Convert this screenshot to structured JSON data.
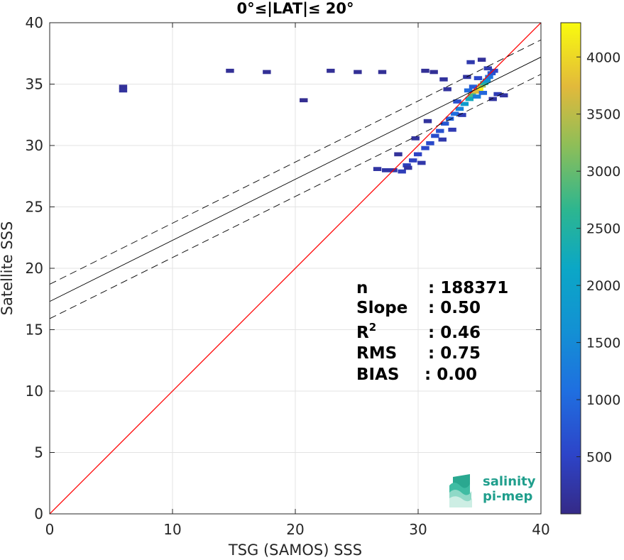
{
  "chart_data": {
    "type": "heatmap",
    "title": "0°≤|LAT|≤ 20°",
    "xlabel": "TSG (SAMOS) SSS",
    "ylabel": "Satellite SSS",
    "xlim": [
      0,
      40
    ],
    "ylim": [
      0,
      40
    ],
    "xticks": [
      0,
      10,
      20,
      30,
      40
    ],
    "yticks": [
      0,
      5,
      10,
      15,
      20,
      25,
      30,
      35,
      40
    ],
    "grid": true,
    "colorbar": {
      "colormap": "parula",
      "range": [
        0,
        4300
      ],
      "ticks": [
        500,
        1000,
        1500,
        2000,
        2500,
        3000,
        3500,
        4000
      ]
    },
    "lines": [
      {
        "name": "one-to-one",
        "style": "solid",
        "color": "#ff0000",
        "x": [
          0,
          40
        ],
        "y": [
          0,
          40
        ]
      },
      {
        "name": "regression",
        "style": "solid",
        "color": "#000000",
        "x": [
          0,
          40
        ],
        "y": [
          17.3,
          37.2
        ]
      },
      {
        "name": "regression-upper",
        "style": "dashed",
        "color": "#000000",
        "x": [
          0,
          40
        ],
        "y": [
          18.7,
          38.6
        ]
      },
      {
        "name": "regression-lower",
        "style": "dashed",
        "color": "#000000",
        "x": [
          0,
          40
        ],
        "y": [
          15.9,
          35.8
        ]
      }
    ],
    "density_cells": [
      [
        34.8,
        34.6,
        4200
      ],
      [
        34.5,
        34.4,
        3600
      ],
      [
        35.0,
        34.9,
        3100
      ],
      [
        34.2,
        34.1,
        2600
      ],
      [
        35.2,
        35.1,
        2200
      ],
      [
        34.0,
        33.8,
        1900
      ],
      [
        33.6,
        33.4,
        1500
      ],
      [
        35.4,
        35.3,
        1300
      ],
      [
        33.2,
        33.0,
        1000
      ],
      [
        34.6,
        34.0,
        900
      ],
      [
        35.6,
        35.6,
        800
      ],
      [
        32.8,
        32.6,
        700
      ],
      [
        33.9,
        34.5,
        650
      ],
      [
        35.1,
        34.3,
        600
      ],
      [
        32.4,
        32.2,
        550
      ],
      [
        34.3,
        34.8,
        500
      ],
      [
        32.0,
        31.8,
        450
      ],
      [
        35.8,
        35.9,
        400
      ],
      [
        31.6,
        31.2,
        380
      ],
      [
        33.0,
        33.6,
        350
      ],
      [
        31.2,
        30.8,
        320
      ],
      [
        30.8,
        30.2,
        300
      ],
      [
        30.4,
        29.8,
        280
      ],
      [
        34.7,
        35.5,
        260
      ],
      [
        36.0,
        36.1,
        240
      ],
      [
        29.8,
        29.3,
        220
      ],
      [
        29.4,
        28.8,
        200
      ],
      [
        28.9,
        28.4,
        180
      ],
      [
        28.5,
        27.9,
        160
      ],
      [
        36.3,
        34.2,
        150
      ],
      [
        33.4,
        32.5,
        140
      ],
      [
        32.6,
        31.3,
        130
      ],
      [
        35.5,
        36.3,
        120
      ],
      [
        34.1,
        36.8,
        110
      ],
      [
        31.8,
        30.5,
        100
      ],
      [
        30.1,
        28.6,
        90
      ],
      [
        27.8,
        28.0,
        80
      ],
      [
        27.2,
        28.0,
        70
      ],
      [
        26.5,
        28.1,
        60
      ],
      [
        29.0,
        28.2,
        60
      ],
      [
        36.8,
        34.1,
        55
      ],
      [
        35.9,
        33.8,
        50
      ],
      [
        33.8,
        35.6,
        50
      ],
      [
        32.2,
        34.6,
        45
      ],
      [
        30.6,
        32.0,
        40
      ],
      [
        29.6,
        30.6,
        40
      ],
      [
        28.2,
        29.3,
        35
      ],
      [
        35.0,
        37.0,
        30
      ],
      [
        5.8,
        34.5,
        40
      ],
      [
        5.8,
        34.8,
        30
      ],
      [
        14.5,
        36.1,
        20
      ],
      [
        17.5,
        36.0,
        20
      ],
      [
        22.7,
        36.1,
        20
      ],
      [
        24.9,
        36.0,
        20
      ],
      [
        26.9,
        36.0,
        20
      ],
      [
        30.4,
        36.1,
        20
      ],
      [
        31.1,
        36.0,
        20
      ],
      [
        20.5,
        33.7,
        10
      ],
      [
        31.9,
        35.4,
        40
      ]
    ],
    "stats": [
      {
        "label": "n",
        "value": ": 188371"
      },
      {
        "label": "Slope",
        "value": ": 0.50"
      },
      {
        "label": "R2",
        "value": ": 0.46"
      },
      {
        "label": "RMS",
        "value": ": 0.75"
      },
      {
        "label": "BIAS",
        "value": ": 0.00"
      }
    ]
  },
  "logo": {
    "line1": "salinity",
    "line2": "pi-mep",
    "color": "#1f9e8c"
  }
}
